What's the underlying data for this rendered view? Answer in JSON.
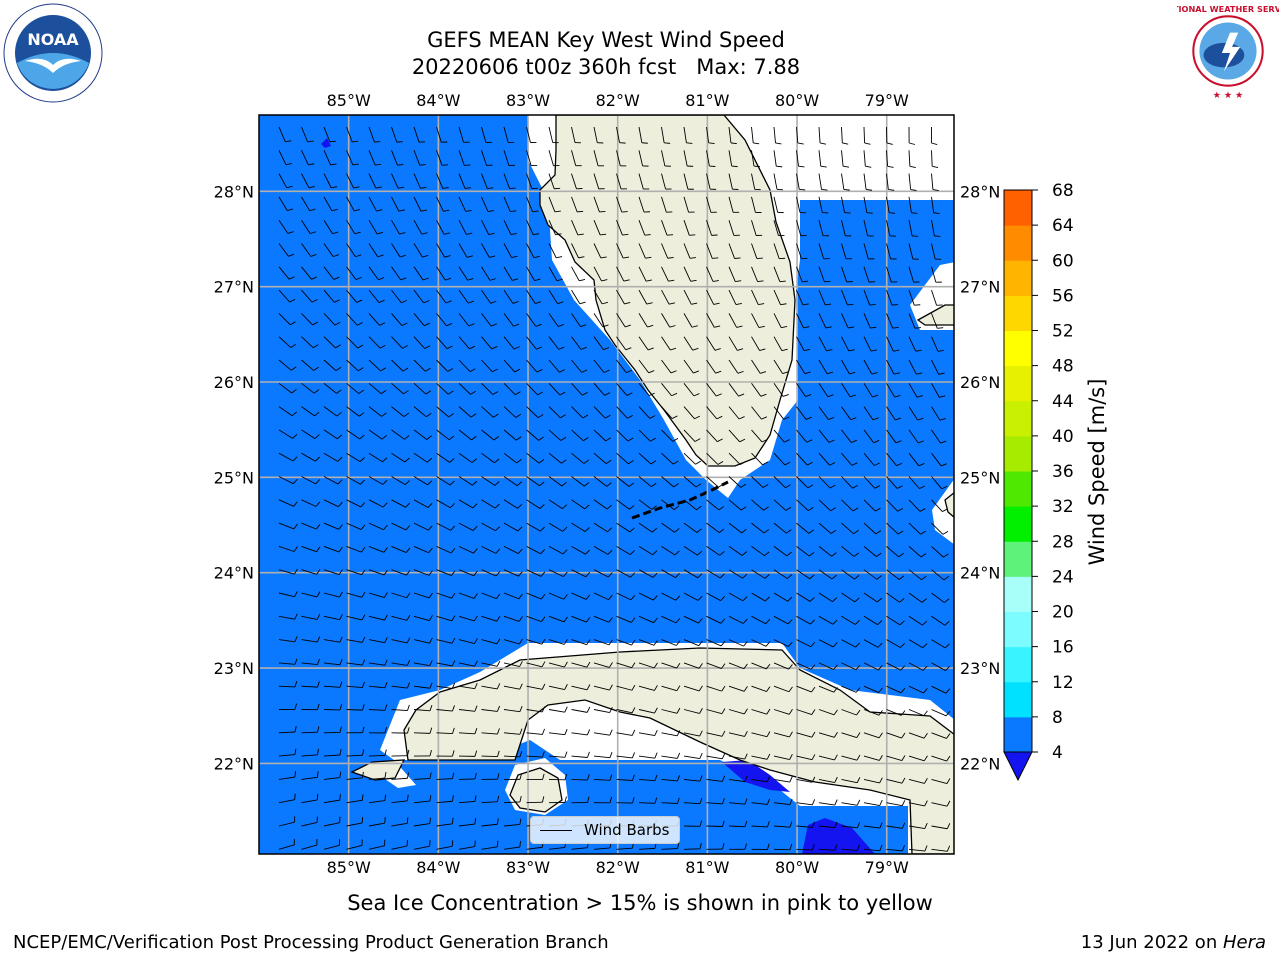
{
  "header": {
    "title": "GEFS MEAN Key West Wind Speed",
    "subtitle": "20220606 t00z 360h fcst   Max: 7.88"
  },
  "logos": {
    "left": {
      "name": "noaa-logo",
      "text": "NOAA"
    },
    "right": {
      "name": "nws-logo",
      "text": "NATIONAL WEATHER SERVICE"
    }
  },
  "map": {
    "region": "Key West",
    "projection": "plate-carree",
    "lon_range": [
      -86.0,
      -78.25
    ],
    "lat_range": [
      21.05,
      28.8
    ],
    "lon_ticks": [
      "85°W",
      "84°W",
      "83°W",
      "82°W",
      "81°W",
      "80°W",
      "79°W"
    ],
    "lat_ticks": [
      "28°N",
      "27°N",
      "26°N",
      "25°N",
      "24°N",
      "23°N",
      "22°N"
    ],
    "gridlines": true,
    "grid_color": "#b0b0b0",
    "ocean_color": "#0a78ff",
    "low_wind_color": "#1414f0",
    "land_color": "#eeeedc",
    "mask_color": "#ffffff",
    "coastline_color": "#000000",
    "legend": {
      "label": "Wind Barbs",
      "position": "lower-center"
    },
    "regions": [
      "Florida",
      "Cuba",
      "Florida Keys",
      "Isle of Youth",
      "Bahamas"
    ]
  },
  "colorbar": {
    "label": "Wind Speed [m/s]",
    "tick_labels": [
      "4",
      "8",
      "12",
      "16",
      "20",
      "24",
      "28",
      "32",
      "36",
      "40",
      "44",
      "48",
      "52",
      "56",
      "60",
      "64",
      "68"
    ],
    "levels": [
      4,
      8,
      12,
      16,
      20,
      24,
      28,
      32,
      36,
      40,
      44,
      48,
      52,
      56,
      60,
      64,
      68
    ],
    "colors": [
      "#0a78ff",
      "#00e1ff",
      "#38f4ff",
      "#7dfcff",
      "#a8fffa",
      "#5ef27a",
      "#00f000",
      "#4ee800",
      "#a7ec00",
      "#c8f000",
      "#e6f000",
      "#ffff00",
      "#ffd700",
      "#ffb400",
      "#ff8c00",
      "#ff6000",
      "#ff3000",
      "#ff0000"
    ],
    "under_color": "#1414f0",
    "extend": "min"
  },
  "captions": {
    "ice_note": "Sea Ice Concentration > 15% is shown in pink to yellow",
    "footer_left": "NCEP/EMC/Verification Post Processing Product Generation Branch",
    "footer_date": "13 Jun 2022 on ",
    "footer_machine": "Hera"
  }
}
